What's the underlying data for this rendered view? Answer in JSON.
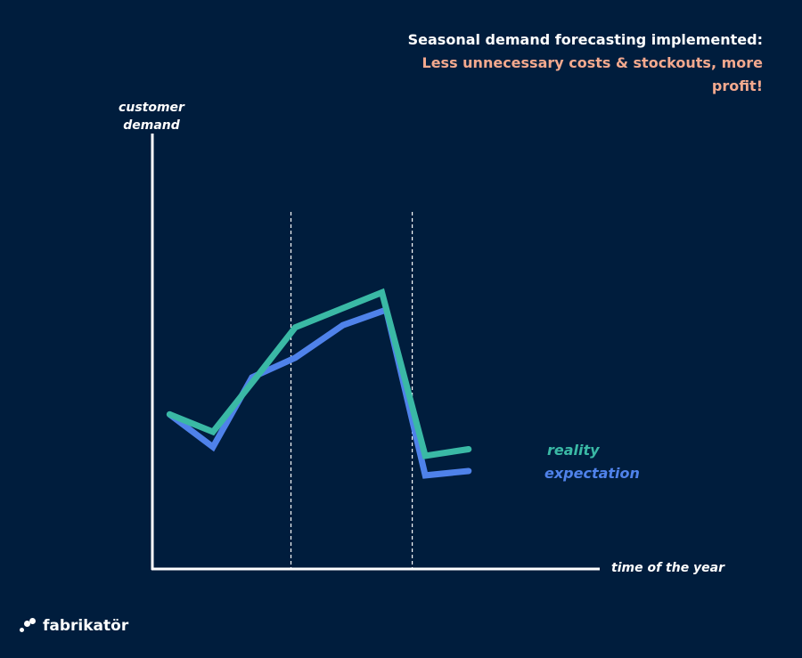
{
  "headline": {
    "white": "Seasonal demand forecasting implemented:",
    "accent": "Less unnecessary costs & stockouts, more profit!"
  },
  "brand": {
    "name": "fabrikatör"
  },
  "colors": {
    "background": "#001d3d",
    "accent_text": "#f4a98e",
    "reality": "#3ab9a5",
    "expectation": "#4f82ea",
    "axis": "#ffffff"
  },
  "chart_data": {
    "type": "line",
    "title": "Seasonal demand forecasting implemented: Less unnecessary costs & stockouts, more profit!",
    "xlabel": "time of the year",
    "ylabel": "customer demand",
    "xlim": [
      0,
      10
    ],
    "ylim": [
      0,
      10
    ],
    "grid": false,
    "season_dividers": [
      3.2,
      6.0
    ],
    "series": [
      {
        "name": "reality",
        "color": "#3ab9a5",
        "x": [
          0.4,
          1.4,
          2.4,
          3.3,
          5.3,
          6.3,
          7.3
        ],
        "y": [
          3.55,
          3.15,
          4.4,
          5.55,
          6.35,
          2.6,
          2.75
        ]
      },
      {
        "name": "expectation",
        "color": "#4f82ea",
        "x": [
          0.4,
          1.4,
          2.3,
          3.3,
          4.4,
          5.4,
          6.3,
          7.3
        ],
        "y": [
          3.55,
          2.8,
          4.4,
          4.85,
          5.6,
          5.95,
          2.15,
          2.25
        ]
      }
    ]
  }
}
